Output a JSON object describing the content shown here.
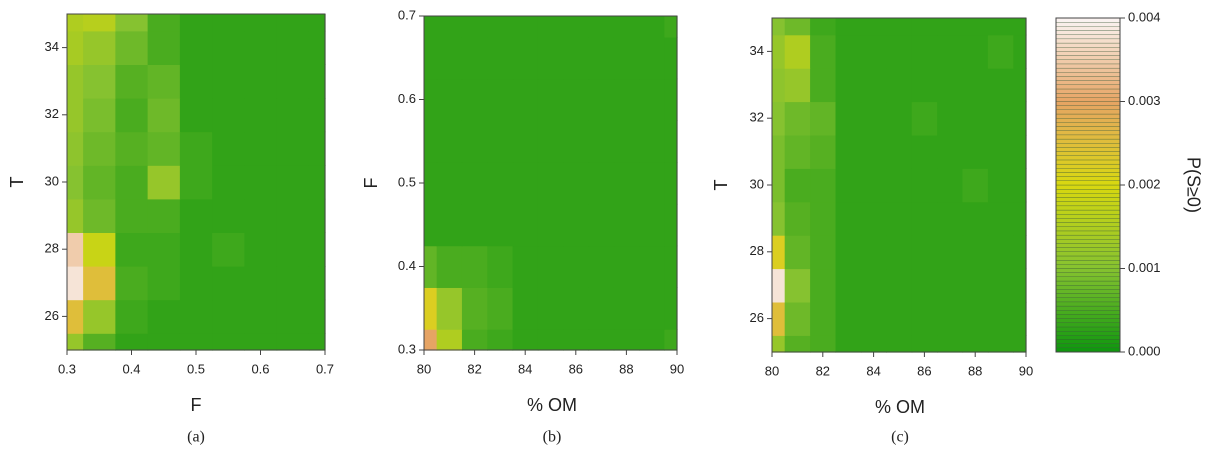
{
  "chart_data": [
    {
      "type": "heatmap",
      "caption": "(a)",
      "x_label": "F",
      "y_label": "T",
      "x": [
        0.3,
        0.35,
        0.4,
        0.45,
        0.5,
        0.55,
        0.6,
        0.65,
        0.7
      ],
      "y": [
        25,
        26,
        27,
        28,
        29,
        30,
        31,
        32,
        33,
        34,
        35
      ],
      "z": [
        [
          0.0012,
          0.0006,
          0.0003,
          0.0003,
          0.0003,
          0.0003,
          0.0003,
          0.0003,
          0.0003
        ],
        [
          0.0025,
          0.0012,
          0.0004,
          0.0003,
          0.0003,
          0.0003,
          0.0003,
          0.0003,
          0.0003
        ],
        [
          0.0038,
          0.0025,
          0.0005,
          0.0004,
          0.0003,
          0.0003,
          0.0003,
          0.0003,
          0.0003
        ],
        [
          0.0035,
          0.0018,
          0.0004,
          0.0004,
          0.0003,
          0.0004,
          0.0003,
          0.0003,
          0.0003
        ],
        [
          0.0012,
          0.0008,
          0.0005,
          0.0005,
          0.0003,
          0.0003,
          0.0003,
          0.0003,
          0.0003
        ],
        [
          0.001,
          0.0007,
          0.0005,
          0.0012,
          0.0004,
          0.0003,
          0.0003,
          0.0003,
          0.0003
        ],
        [
          0.0011,
          0.0008,
          0.0006,
          0.0007,
          0.0004,
          0.0003,
          0.0003,
          0.0003,
          0.0003
        ],
        [
          0.0012,
          0.0009,
          0.0005,
          0.0008,
          0.0003,
          0.0003,
          0.0003,
          0.0003,
          0.0003
        ],
        [
          0.0012,
          0.001,
          0.0006,
          0.0007,
          0.0003,
          0.0003,
          0.0003,
          0.0003,
          0.0003
        ],
        [
          0.0014,
          0.0012,
          0.0008,
          0.0005,
          0.0003,
          0.0003,
          0.0003,
          0.0003,
          0.0003
        ],
        [
          0.0015,
          0.0016,
          0.001,
          0.0005,
          0.0003,
          0.0003,
          0.0003,
          0.0003,
          0.0003
        ]
      ],
      "xlim": [
        0.3,
        0.7
      ],
      "xticks": [
        0.3,
        0.4,
        0.5,
        0.6,
        0.7
      ],
      "ylim": [
        25,
        35
      ],
      "yticks": [
        26,
        28,
        30,
        32,
        34
      ]
    },
    {
      "type": "heatmap",
      "caption": "(b)",
      "x_label": "% OM",
      "y_label": "F",
      "x": [
        80,
        81,
        82,
        83,
        84,
        85,
        86,
        87,
        88,
        89,
        90
      ],
      "y": [
        0.3,
        0.35,
        0.4,
        0.45,
        0.5,
        0.55,
        0.6,
        0.65,
        0.7
      ],
      "z": [
        [
          0.003,
          0.0015,
          0.0005,
          0.0004,
          0.0003,
          0.0003,
          0.0003,
          0.0003,
          0.0003,
          0.0003,
          0.0004
        ],
        [
          0.0022,
          0.0012,
          0.0006,
          0.0005,
          0.0003,
          0.0003,
          0.0003,
          0.0003,
          0.0003,
          0.0003,
          0.0003
        ],
        [
          0.0007,
          0.0005,
          0.0005,
          0.0004,
          0.0003,
          0.0003,
          0.0003,
          0.0003,
          0.0003,
          0.0003,
          0.0003
        ],
        [
          0.0003,
          0.0003,
          0.0003,
          0.0003,
          0.0003,
          0.0003,
          0.0003,
          0.0003,
          0.0003,
          0.0003,
          0.0003
        ],
        [
          0.0003,
          0.0003,
          0.0003,
          0.0003,
          0.0003,
          0.0003,
          0.0003,
          0.0003,
          0.0003,
          0.0003,
          0.0003
        ],
        [
          0.0003,
          0.0003,
          0.0003,
          0.0003,
          0.0003,
          0.0003,
          0.0003,
          0.0003,
          0.0003,
          0.0003,
          0.0003
        ],
        [
          0.0003,
          0.0003,
          0.0003,
          0.0003,
          0.0003,
          0.0003,
          0.0003,
          0.0003,
          0.0003,
          0.0003,
          0.0003
        ],
        [
          0.0003,
          0.0003,
          0.0003,
          0.0003,
          0.0003,
          0.0003,
          0.0003,
          0.0003,
          0.0003,
          0.0003,
          0.0003
        ],
        [
          0.0003,
          0.0003,
          0.0003,
          0.0003,
          0.0003,
          0.0003,
          0.0003,
          0.0003,
          0.0003,
          0.0003,
          0.0004
        ]
      ],
      "xlim": [
        80,
        90
      ],
      "xticks": [
        80,
        82,
        84,
        86,
        88,
        90
      ],
      "ylim": [
        0.3,
        0.7
      ],
      "yticks": [
        0.3,
        0.4,
        0.5,
        0.6,
        0.7
      ]
    },
    {
      "type": "heatmap",
      "caption": "(c)",
      "x_label": "% OM",
      "y_label": "T",
      "x": [
        80,
        81,
        82,
        83,
        84,
        85,
        86,
        87,
        88,
        89,
        90
      ],
      "y": [
        25,
        26,
        27,
        28,
        29,
        30,
        31,
        32,
        33,
        34,
        35
      ],
      "z": [
        [
          0.0012,
          0.0006,
          0.0005,
          0.0003,
          0.0003,
          0.0003,
          0.0003,
          0.0003,
          0.0003,
          0.0003,
          0.0003
        ],
        [
          0.0025,
          0.0008,
          0.0005,
          0.0003,
          0.0003,
          0.0003,
          0.0003,
          0.0003,
          0.0003,
          0.0003,
          0.0003
        ],
        [
          0.0038,
          0.001,
          0.0005,
          0.0003,
          0.0003,
          0.0003,
          0.0003,
          0.0003,
          0.0003,
          0.0003,
          0.0003
        ],
        [
          0.0022,
          0.0007,
          0.0005,
          0.0003,
          0.0003,
          0.0003,
          0.0003,
          0.0003,
          0.0003,
          0.0003,
          0.0003
        ],
        [
          0.001,
          0.0006,
          0.0005,
          0.0003,
          0.0003,
          0.0003,
          0.0003,
          0.0003,
          0.0003,
          0.0003,
          0.0003
        ],
        [
          0.0009,
          0.0005,
          0.0005,
          0.0003,
          0.0003,
          0.0003,
          0.0003,
          0.0003,
          0.0004,
          0.0003,
          0.0003
        ],
        [
          0.0009,
          0.0007,
          0.0006,
          0.0003,
          0.0003,
          0.0003,
          0.0003,
          0.0003,
          0.0003,
          0.0003,
          0.0003
        ],
        [
          0.001,
          0.0008,
          0.0007,
          0.0003,
          0.0003,
          0.0003,
          0.0004,
          0.0003,
          0.0003,
          0.0003,
          0.0003
        ],
        [
          0.0011,
          0.0012,
          0.0005,
          0.0003,
          0.0003,
          0.0003,
          0.0003,
          0.0003,
          0.0003,
          0.0003,
          0.0003
        ],
        [
          0.0012,
          0.0015,
          0.0005,
          0.0003,
          0.0003,
          0.0003,
          0.0003,
          0.0003,
          0.0003,
          0.0004,
          0.0003
        ],
        [
          0.001,
          0.0008,
          0.0004,
          0.0003,
          0.0003,
          0.0003,
          0.0003,
          0.0003,
          0.0003,
          0.0003,
          0.0003
        ]
      ],
      "xlim": [
        80,
        90
      ],
      "xticks": [
        80,
        82,
        84,
        86,
        88,
        90
      ],
      "ylim": [
        25,
        35
      ],
      "yticks": [
        26,
        28,
        30,
        32,
        34
      ]
    }
  ],
  "colorbar": {
    "label": "P(S≥0)",
    "lim": [
      0,
      0.004
    ],
    "ticks": [
      {
        "value": 0,
        "label": "0.000"
      },
      {
        "value": 0.001,
        "label": "0.001"
      },
      {
        "value": 0.002,
        "label": "0.002"
      },
      {
        "value": 0.003,
        "label": "0.003"
      },
      {
        "value": 0.004,
        "label": "0.004"
      }
    ],
    "colors": [
      "#0e960e",
      "#86c230",
      "#d8d810",
      "#e6a464",
      "#faf4f4"
    ]
  }
}
